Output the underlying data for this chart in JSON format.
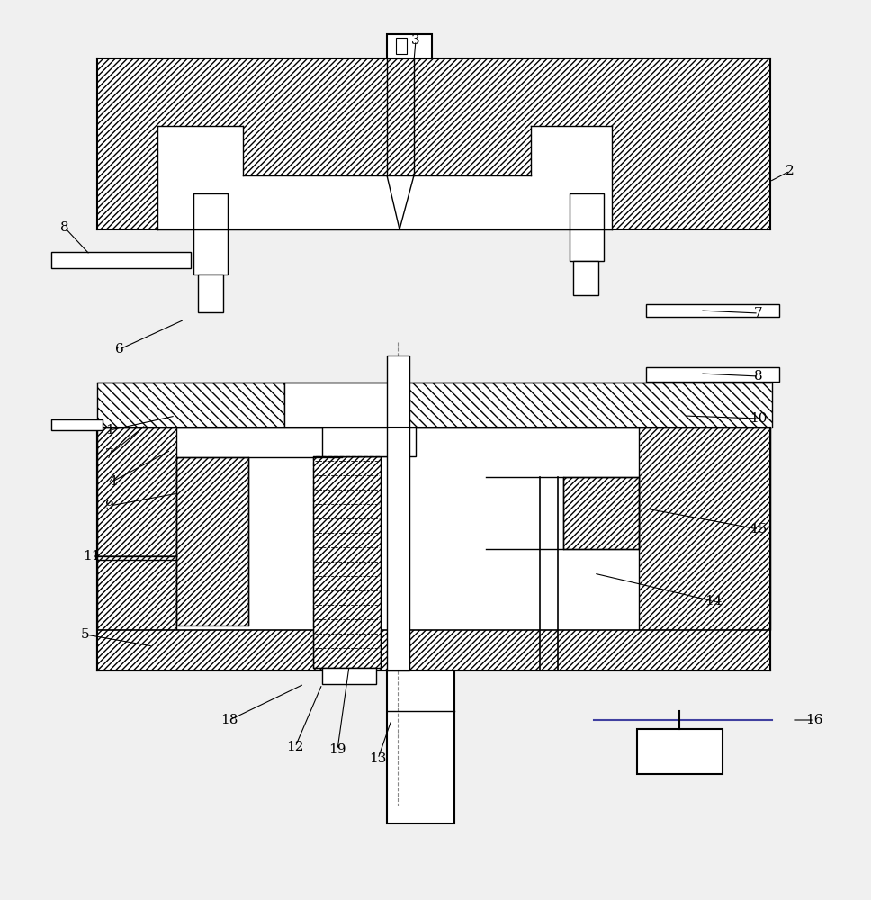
{
  "bg_color": "#f0f0f0",
  "line_color": "#000000",
  "label_pairs": [
    [
      "3",
      462,
      45,
      460,
      68
    ],
    [
      "2",
      878,
      190,
      855,
      202
    ],
    [
      "8",
      72,
      253,
      100,
      283
    ],
    [
      "6",
      133,
      388,
      205,
      355
    ],
    [
      "1",
      122,
      478,
      195,
      462
    ],
    [
      "7",
      122,
      505,
      162,
      472
    ],
    [
      "4",
      125,
      535,
      190,
      500
    ],
    [
      "9",
      122,
      562,
      198,
      548
    ],
    [
      "5",
      95,
      705,
      170,
      718
    ],
    [
      "11",
      102,
      618,
      200,
      618
    ],
    [
      "18",
      255,
      800,
      338,
      760
    ],
    [
      "12",
      328,
      830,
      358,
      760
    ],
    [
      "19",
      375,
      833,
      388,
      740
    ],
    [
      "13",
      420,
      843,
      435,
      800
    ],
    [
      "14",
      793,
      668,
      660,
      637
    ],
    [
      "15",
      843,
      588,
      718,
      565
    ],
    [
      "10",
      843,
      465,
      760,
      462
    ],
    [
      "7",
      843,
      348,
      778,
      345
    ],
    [
      "8",
      843,
      418,
      778,
      415
    ],
    [
      "16",
      905,
      800,
      880,
      800
    ]
  ]
}
